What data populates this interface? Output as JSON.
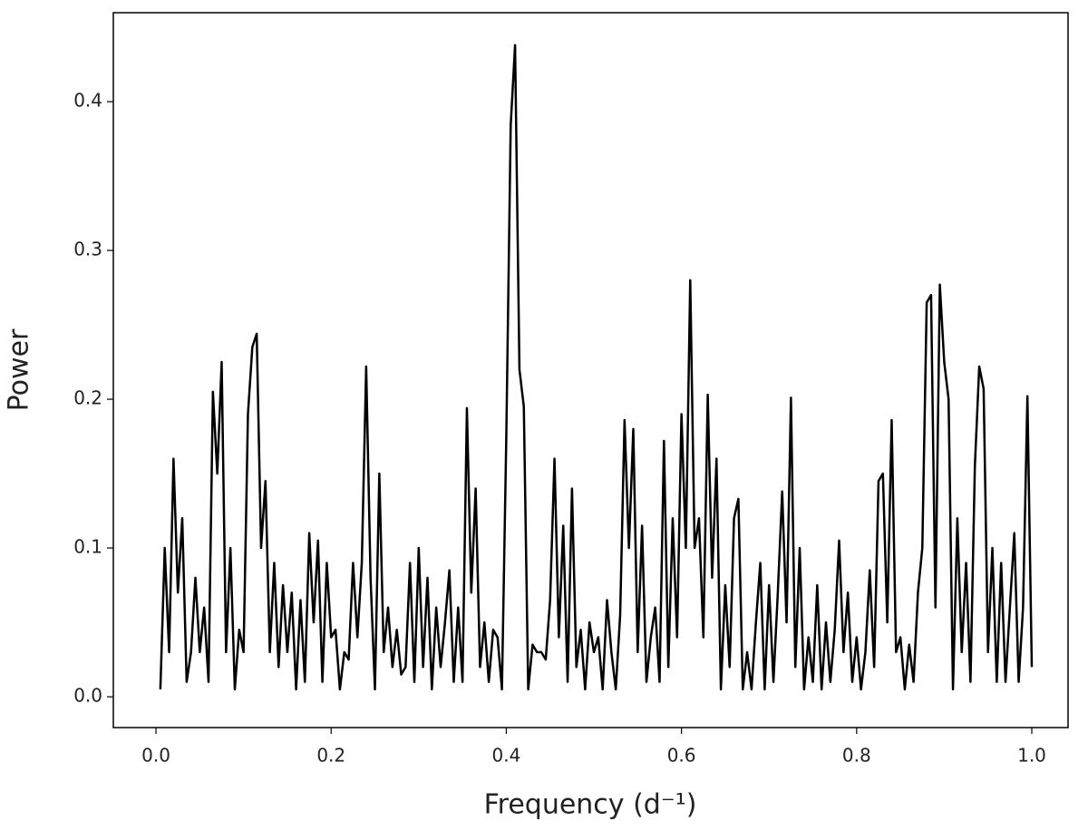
{
  "chart_data": {
    "type": "line",
    "x_label": "Frequency (d⁻¹)",
    "y_label": "Power",
    "x": [
      0.005,
      0.01,
      0.015,
      0.02,
      0.025,
      0.03,
      0.035,
      0.04,
      0.045,
      0.05,
      0.055,
      0.06,
      0.065,
      0.07,
      0.075,
      0.08,
      0.085,
      0.09,
      0.095,
      0.1,
      0.105,
      0.11,
      0.115,
      0.12,
      0.125,
      0.13,
      0.135,
      0.14,
      0.145,
      0.15,
      0.155,
      0.16,
      0.165,
      0.17,
      0.175,
      0.18,
      0.185,
      0.19,
      0.195,
      0.2,
      0.205,
      0.21,
      0.215,
      0.22,
      0.225,
      0.23,
      0.235,
      0.24,
      0.245,
      0.25,
      0.255,
      0.26,
      0.265,
      0.27,
      0.275,
      0.28,
      0.285,
      0.29,
      0.295,
      0.3,
      0.305,
      0.31,
      0.315,
      0.32,
      0.325,
      0.33,
      0.335,
      0.34,
      0.345,
      0.35,
      0.355,
      0.36,
      0.365,
      0.37,
      0.375,
      0.38,
      0.385,
      0.39,
      0.395,
      0.4,
      0.405,
      0.41,
      0.415,
      0.42,
      0.425,
      0.43,
      0.435,
      0.44,
      0.445,
      0.45,
      0.455,
      0.46,
      0.465,
      0.47,
      0.475,
      0.48,
      0.485,
      0.49,
      0.495,
      0.5,
      0.505,
      0.51,
      0.515,
      0.52,
      0.525,
      0.53,
      0.535,
      0.54,
      0.545,
      0.55,
      0.555,
      0.56,
      0.565,
      0.57,
      0.575,
      0.58,
      0.585,
      0.59,
      0.595,
      0.6,
      0.605,
      0.61,
      0.615,
      0.62,
      0.625,
      0.63,
      0.635,
      0.64,
      0.645,
      0.65,
      0.655,
      0.66,
      0.665,
      0.67,
      0.675,
      0.68,
      0.685,
      0.69,
      0.695,
      0.7,
      0.705,
      0.71,
      0.715,
      0.72,
      0.725,
      0.73,
      0.735,
      0.74,
      0.745,
      0.75,
      0.755,
      0.76,
      0.765,
      0.77,
      0.775,
      0.78,
      0.785,
      0.79,
      0.795,
      0.8,
      0.805,
      0.81,
      0.815,
      0.82,
      0.825,
      0.83,
      0.835,
      0.84,
      0.845,
      0.85,
      0.855,
      0.86,
      0.865,
      0.87,
      0.875,
      0.88,
      0.885,
      0.89,
      0.895,
      0.9,
      0.905,
      0.91,
      0.915,
      0.92,
      0.925,
      0.93,
      0.935,
      0.94,
      0.945,
      0.95,
      0.955,
      0.96,
      0.965,
      0.97,
      0.975,
      0.98,
      0.985,
      0.99,
      0.995,
      1.0
    ],
    "series": [
      {
        "color": "#000000",
        "values": [
          0.005,
          0.1,
          0.03,
          0.16,
          0.07,
          0.12,
          0.01,
          0.03,
          0.08,
          0.03,
          0.06,
          0.01,
          0.205,
          0.15,
          0.225,
          0.03,
          0.1,
          0.005,
          0.045,
          0.03,
          0.19,
          0.235,
          0.244,
          0.1,
          0.145,
          0.03,
          0.09,
          0.02,
          0.075,
          0.03,
          0.07,
          0.005,
          0.065,
          0.01,
          0.11,
          0.05,
          0.105,
          0.01,
          0.09,
          0.04,
          0.045,
          0.005,
          0.03,
          0.025,
          0.09,
          0.04,
          0.09,
          0.222,
          0.08,
          0.005,
          0.15,
          0.03,
          0.06,
          0.02,
          0.045,
          0.015,
          0.02,
          0.09,
          0.01,
          0.1,
          0.02,
          0.08,
          0.005,
          0.06,
          0.02,
          0.05,
          0.085,
          0.01,
          0.06,
          0.01,
          0.194,
          0.07,
          0.14,
          0.02,
          0.05,
          0.01,
          0.045,
          0.04,
          0.005,
          0.175,
          0.384,
          0.438,
          0.22,
          0.195,
          0.005,
          0.035,
          0.03,
          0.03,
          0.025,
          0.065,
          0.16,
          0.04,
          0.115,
          0.01,
          0.14,
          0.02,
          0.045,
          0.005,
          0.05,
          0.03,
          0.04,
          0.005,
          0.065,
          0.03,
          0.005,
          0.055,
          0.186,
          0.1,
          0.18,
          0.03,
          0.115,
          0.01,
          0.04,
          0.06,
          0.01,
          0.172,
          0.02,
          0.12,
          0.04,
          0.19,
          0.1,
          0.28,
          0.1,
          0.12,
          0.04,
          0.203,
          0.08,
          0.16,
          0.005,
          0.075,
          0.02,
          0.12,
          0.133,
          0.005,
          0.03,
          0.005,
          0.05,
          0.09,
          0.005,
          0.075,
          0.01,
          0.07,
          0.138,
          0.05,
          0.201,
          0.02,
          0.1,
          0.005,
          0.04,
          0.01,
          0.075,
          0.005,
          0.05,
          0.01,
          0.045,
          0.105,
          0.03,
          0.07,
          0.01,
          0.04,
          0.005,
          0.03,
          0.085,
          0.02,
          0.145,
          0.15,
          0.05,
          0.186,
          0.03,
          0.04,
          0.005,
          0.035,
          0.01,
          0.07,
          0.1,
          0.265,
          0.27,
          0.06,
          0.277,
          0.225,
          0.2,
          0.005,
          0.12,
          0.03,
          0.09,
          0.01,
          0.155,
          0.222,
          0.207,
          0.03,
          0.1,
          0.01,
          0.09,
          0.01,
          0.06,
          0.11,
          0.01,
          0.06,
          0.202,
          0.02
        ]
      }
    ],
    "xlim": [
      -0.0487,
      1.0414
    ],
    "ylim": [
      -0.0207,
      0.4598
    ],
    "xticks": [
      {
        "value": 0,
        "label": "0.0"
      },
      0.2,
      0.4,
      0.6,
      0.8,
      {
        "value": 1,
        "label": "1.0"
      }
    ],
    "yticks": [
      {
        "value": 0,
        "label": "0.0"
      },
      0.1,
      0.2,
      0.3,
      0.4
    ],
    "grid": false
  }
}
